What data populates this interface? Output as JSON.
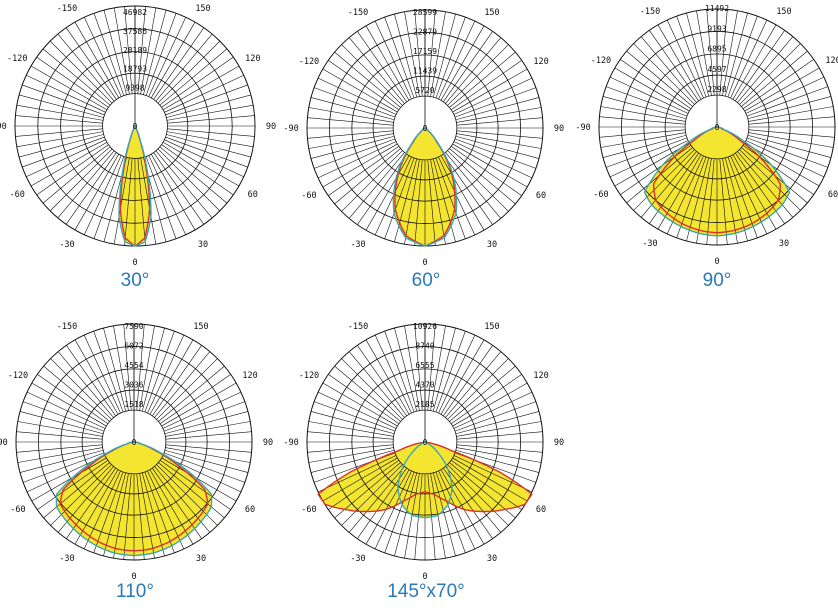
{
  "colors": {
    "fill": "#f4e531",
    "edge_c0": "#d9312c",
    "edge_c90": "#3aa6b4",
    "grid": "#111111",
    "caption": "#2a7ab8"
  },
  "chart_data": [
    {
      "type": "polar",
      "caption": "30°",
      "ring_labels": [
        "9398",
        "18793",
        "28189",
        "37586",
        "46982"
      ],
      "angle_labels": [
        "-150",
        "150",
        "-120",
        "120",
        "-90",
        "90",
        "-60",
        "60",
        "-30",
        "30",
        "0"
      ],
      "rmax": 46982,
      "series": [
        {
          "color": "red",
          "profile": [
            [
              0,
              46982
            ],
            [
              5,
              44000
            ],
            [
              10,
              33000
            ],
            [
              15,
              16000
            ],
            [
              20,
              5000
            ],
            [
              25,
              1200
            ],
            [
              30,
              300
            ],
            [
              90,
              0
            ]
          ]
        },
        {
          "color": "teal",
          "profile": [
            [
              0,
              46982
            ],
            [
              5,
              45500
            ],
            [
              10,
              36000
            ],
            [
              15,
              19000
            ],
            [
              20,
              6000
            ],
            [
              25,
              1500
            ],
            [
              30,
              300
            ],
            [
              90,
              0
            ]
          ]
        }
      ]
    },
    {
      "type": "polar",
      "caption": "60°",
      "ring_labels": [
        "5720",
        "11439",
        "17159",
        "22879",
        "28599"
      ],
      "angle_labels": [
        "-150",
        "150",
        "-120",
        "120",
        "-90",
        "90",
        "-60",
        "60",
        "-30",
        "30",
        "0"
      ],
      "rmax": 28599,
      "series": [
        {
          "color": "red",
          "profile": [
            [
              0,
              28599
            ],
            [
              10,
              26500
            ],
            [
              20,
              21000
            ],
            [
              30,
              13000
            ],
            [
              40,
              4500
            ],
            [
              50,
              900
            ],
            [
              60,
              200
            ],
            [
              90,
              0
            ]
          ]
        },
        {
          "color": "teal",
          "profile": [
            [
              0,
              28599
            ],
            [
              10,
              27000
            ],
            [
              20,
              22000
            ],
            [
              30,
              14000
            ],
            [
              40,
              5000
            ],
            [
              50,
              1000
            ],
            [
              60,
              200
            ],
            [
              90,
              0
            ]
          ]
        }
      ]
    },
    {
      "type": "polar",
      "caption": "90°",
      "ring_labels": [
        "2298",
        "4597",
        "6895",
        "9193",
        "11492"
      ],
      "angle_labels": [
        "-150",
        "150",
        "-120",
        "120",
        "-90",
        "90",
        "-60",
        "60",
        "-30",
        "30",
        "0"
      ],
      "rmax": 11492,
      "series": [
        {
          "color": "red",
          "profile": [
            [
              0,
              10300
            ],
            [
              10,
              10200
            ],
            [
              20,
              10000
            ],
            [
              30,
              9700
            ],
            [
              40,
              9300
            ],
            [
              48,
              8300
            ],
            [
              55,
              5000
            ],
            [
              60,
              2500
            ],
            [
              70,
              500
            ],
            [
              90,
              0
            ]
          ]
        },
        {
          "color": "teal",
          "profile": [
            [
              0,
              10600
            ],
            [
              10,
              10500
            ],
            [
              20,
              10300
            ],
            [
              30,
              10100
            ],
            [
              40,
              9900
            ],
            [
              48,
              9500
            ],
            [
              55,
              6500
            ],
            [
              62,
              3000
            ],
            [
              70,
              700
            ],
            [
              90,
              0
            ]
          ]
        }
      ]
    },
    {
      "type": "polar",
      "caption": "110°",
      "ring_labels": [
        "1518",
        "3036",
        "4554",
        "6072",
        "7590"
      ],
      "angle_labels": [
        "-150",
        "150",
        "-120",
        "120",
        "-90",
        "90",
        "-60",
        "60",
        "-30",
        "30",
        "0"
      ],
      "rmax": 7590,
      "series": [
        {
          "color": "red",
          "profile": [
            [
              0,
              7000
            ],
            [
              10,
              6950
            ],
            [
              20,
              6800
            ],
            [
              30,
              6600
            ],
            [
              40,
              6400
            ],
            [
              50,
              6200
            ],
            [
              56,
              5500
            ],
            [
              62,
              3200
            ],
            [
              68,
              1500
            ],
            [
              75,
              400
            ],
            [
              90,
              0
            ]
          ]
        },
        {
          "color": "teal",
          "profile": [
            [
              0,
              7300
            ],
            [
              10,
              7250
            ],
            [
              20,
              7100
            ],
            [
              30,
              6900
            ],
            [
              40,
              6700
            ],
            [
              50,
              6500
            ],
            [
              56,
              6000
            ],
            [
              62,
              3800
            ],
            [
              68,
              1800
            ],
            [
              75,
              500
            ],
            [
              90,
              0
            ]
          ]
        }
      ]
    },
    {
      "type": "polar",
      "caption": "145°x70°",
      "ring_labels": [
        "2185",
        "4370",
        "6555",
        "8740",
        "10926"
      ],
      "angle_labels": [
        "-150",
        "150",
        "-120",
        "120",
        "-90",
        "90",
        "-60",
        "60",
        "-30",
        "30",
        "0"
      ],
      "rmax": 10926,
      "series": [
        {
          "color": "red",
          "profile": [
            [
              0,
              4600
            ],
            [
              10,
              4900
            ],
            [
              20,
              5800
            ],
            [
              30,
              7200
            ],
            [
              40,
              8400
            ],
            [
              50,
              9700
            ],
            [
              58,
              10900
            ],
            [
              64,
              11000
            ],
            [
              68,
              7500
            ],
            [
              72,
              2500
            ],
            [
              80,
              300
            ],
            [
              90,
              0
            ]
          ]
        },
        {
          "color": "teal",
          "profile": [
            [
              0,
              7000
            ],
            [
              10,
              6900
            ],
            [
              20,
              6200
            ],
            [
              30,
              5000
            ],
            [
              40,
              3300
            ],
            [
              50,
              1600
            ],
            [
              60,
              500
            ],
            [
              70,
              100
            ],
            [
              90,
              0
            ]
          ]
        }
      ]
    }
  ]
}
